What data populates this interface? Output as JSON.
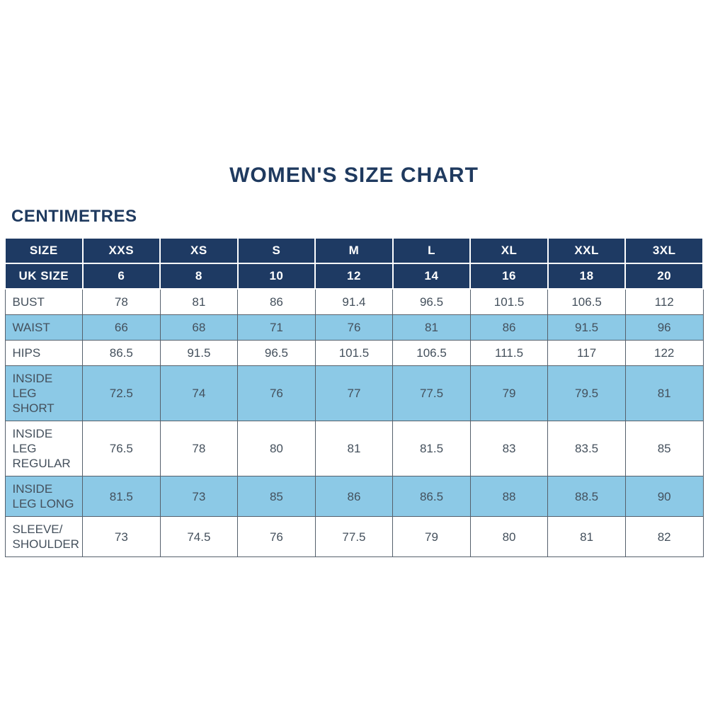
{
  "page": {
    "title": "WOMEN'S SIZE CHART",
    "unit_label": "CENTIMETRES"
  },
  "colors": {
    "navy_header": "#1e3a63",
    "light_blue_row": "#8cc9e6",
    "title_text": "#1f3a5f",
    "body_text": "#44505c",
    "body_border": "#55606c"
  },
  "chart_data": {
    "type": "table",
    "title": "WOMEN'S SIZE CHART",
    "unit": "CENTIMETRES",
    "columns": [
      "SIZE",
      "XXS",
      "XS",
      "S",
      "M",
      "L",
      "XL",
      "XXL",
      "3XL"
    ],
    "uk_size_row": {
      "label": "UK SIZE",
      "values": [
        "6",
        "8",
        "10",
        "12",
        "14",
        "16",
        "18",
        "20"
      ]
    },
    "rows": [
      {
        "label": "BUST",
        "values": [
          "78",
          "81",
          "86",
          "91.4",
          "96.5",
          "101.5",
          "106.5",
          "112"
        ]
      },
      {
        "label": "WAIST",
        "values": [
          "66",
          "68",
          "71",
          "76",
          "81",
          "86",
          "91.5",
          "96"
        ]
      },
      {
        "label": "HIPS",
        "values": [
          "86.5",
          "91.5",
          "96.5",
          "101.5",
          "106.5",
          "111.5",
          "117",
          "122"
        ]
      },
      {
        "label": "INSIDE LEG SHORT",
        "values": [
          "72.5",
          "74",
          "76",
          "77",
          "77.5",
          "79",
          "79.5",
          "81"
        ]
      },
      {
        "label": "INSIDE LEG REGULAR",
        "values": [
          "76.5",
          "78",
          "80",
          "81",
          "81.5",
          "83",
          "83.5",
          "85"
        ]
      },
      {
        "label": "INSIDE LEG LONG",
        "values": [
          "81.5",
          "73",
          "85",
          "86",
          "86.5",
          "88",
          "88.5",
          "90"
        ]
      },
      {
        "label": "SLEEVE/ SHOULDER",
        "values": [
          "73",
          "74.5",
          "76",
          "77.5",
          "79",
          "80",
          "81",
          "82"
        ]
      }
    ]
  }
}
